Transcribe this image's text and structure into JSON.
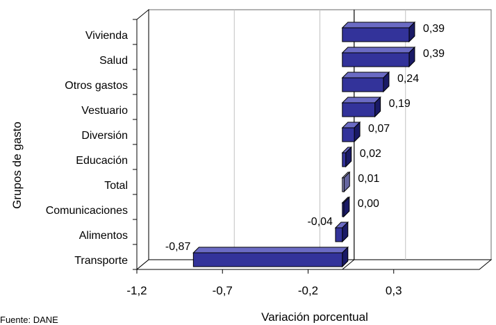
{
  "chart_data": {
    "type": "bar",
    "orientation": "horizontal",
    "style": "3d",
    "xlabel": "Variación porcentual",
    "ylabel": "Grupos de gasto",
    "xlim": [
      -1.2,
      0.8
    ],
    "xticks": [
      "-1,2",
      "-0,7",
      "-0,2",
      "0,3"
    ],
    "xtick_values": [
      -1.2,
      -0.7,
      -0.2,
      0.3
    ],
    "gridlines": "vertical",
    "categories": [
      "Vivienda",
      "Salud",
      "Otros gastos",
      "Vestuario",
      "Diversión",
      "Educación",
      "Total",
      "Comunicaciones",
      "Alimentos",
      "Transporte"
    ],
    "values": [
      0.39,
      0.39,
      0.24,
      0.19,
      0.07,
      0.02,
      0.01,
      0.0,
      -0.04,
      -0.87
    ],
    "data_labels": [
      "0,39",
      "0,39",
      "0,24",
      "0,19",
      "0,07",
      "0,02",
      "0,01",
      "0,00",
      "-0,04",
      "-0,87"
    ],
    "colors": {
      "bar": "#33339a",
      "bar_top": "#6b6bc4",
      "bar_side": "#1a1a66",
      "total_bar": "#9999cc",
      "grid": "#c0c0c0",
      "wall": "#808080"
    }
  },
  "source_note": "Fuente: DANE"
}
